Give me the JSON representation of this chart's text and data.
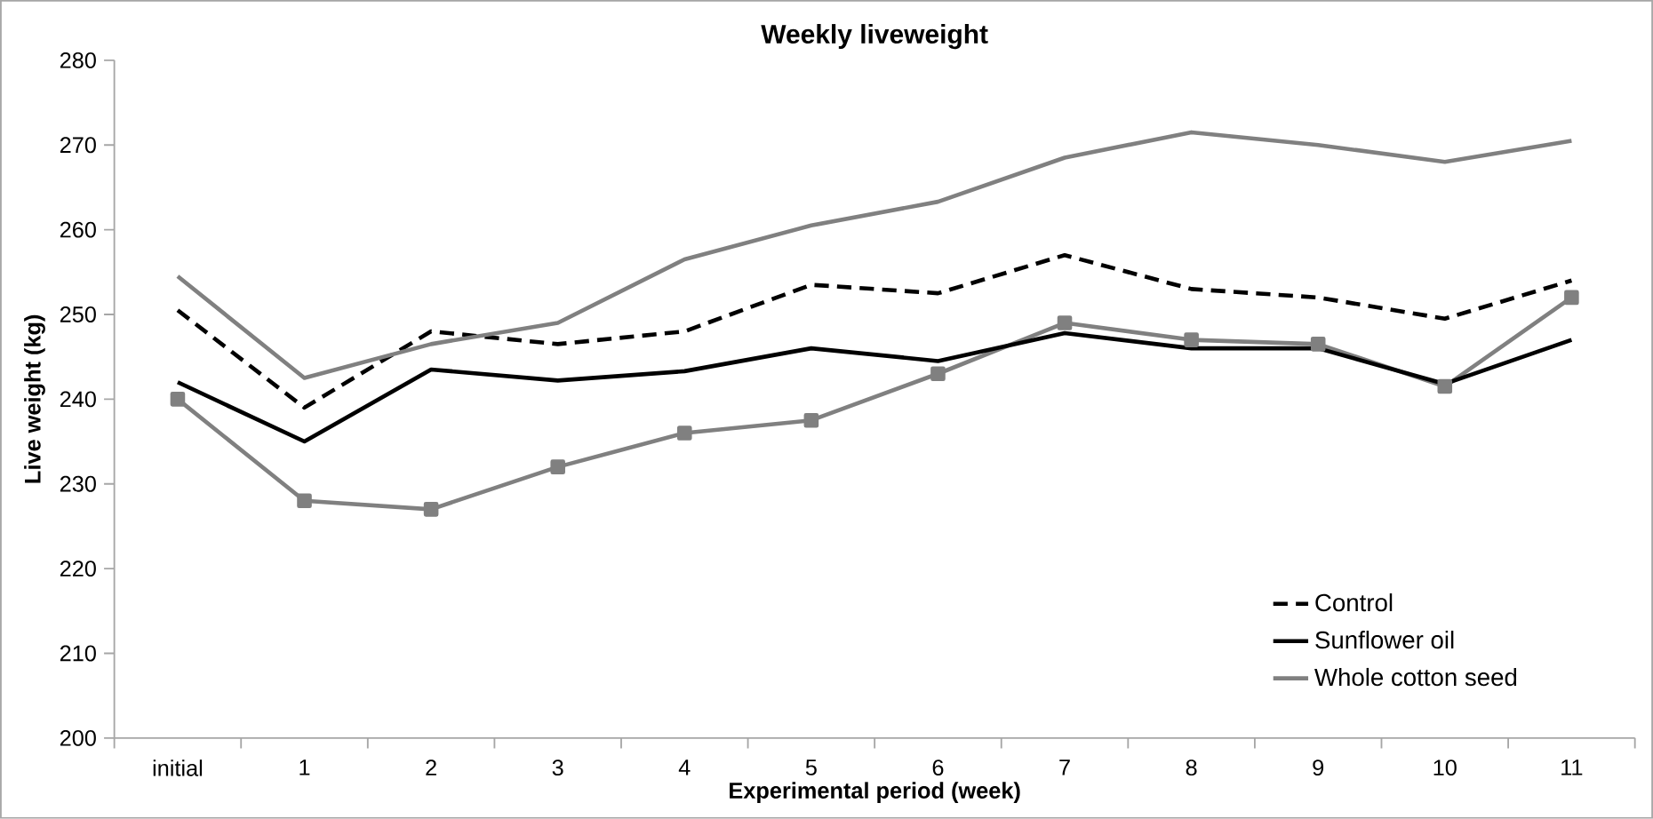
{
  "chart_data": {
    "type": "line",
    "title": "Weekly liveweight",
    "xlabel": "Experimental period (week)",
    "ylabel": "Live weight (kg)",
    "categories": [
      "initial",
      "1",
      "2",
      "3",
      "4",
      "5",
      "6",
      "7",
      "8",
      "9",
      "10",
      "11"
    ],
    "series": [
      {
        "color": "#808080",
        "marker": "square",
        "line_style": "solid",
        "values": [
          240,
          228,
          227,
          232,
          236,
          237.5,
          243,
          249,
          247,
          246.5,
          241.5,
          252
        ]
      },
      {
        "name": "Control",
        "color": "#000000",
        "line_style": "dashed",
        "values": [
          250.5,
          239,
          248,
          246.5,
          248,
          253.5,
          252.5,
          257,
          253,
          252,
          249.5,
          254
        ]
      },
      {
        "name": "Sunflower oil",
        "color": "#000000",
        "line_style": "solid",
        "values": [
          242,
          235,
          243.5,
          242.2,
          243.3,
          246,
          244.5,
          247.8,
          246,
          246,
          241.8,
          247
        ]
      },
      {
        "name": "Whole cotton seed",
        "color": "#808080",
        "line_style": "solid",
        "values": [
          254.5,
          242.5,
          246.5,
          249,
          256.5,
          260.5,
          263.3,
          268.5,
          271.5,
          270,
          268,
          270.5
        ]
      }
    ],
    "ylim": [
      200,
      280
    ],
    "yticks": [
      200,
      210,
      220,
      230,
      240,
      250,
      260,
      270,
      280
    ],
    "grid": false,
    "legend": "bottom right"
  }
}
